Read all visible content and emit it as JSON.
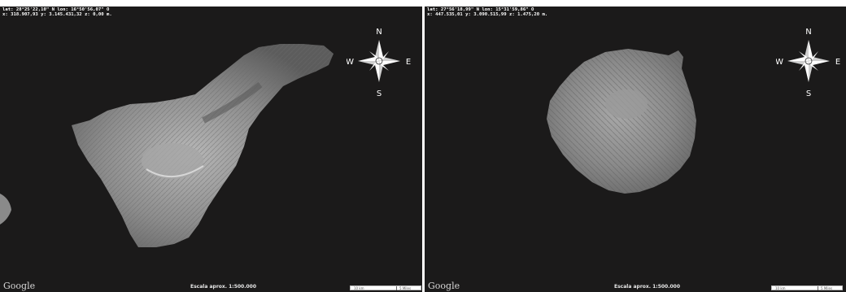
{
  "maps": [
    {
      "coord_line1": "lat: 28°25'22,10\" N  lon: 16°50'56,07\" O",
      "coord_line2": "x: 318.907,93  y: 3.145.431,32  z: 0,00 m.",
      "compass": {
        "n": "N",
        "s": "S",
        "e": "E",
        "w": "W"
      },
      "logo": "Google",
      "scale_text": "Escala aprox. 1:500.000",
      "scalebar_km": "10 km",
      "scalebar_mi": "5 Miles"
    },
    {
      "coord_line1": "lat: 27°56'18,99\" N  lon: 15°31'59,86\" O",
      "coord_line2": "x: 447.535,01  y: 3.090.515,99  z: 1.475,20 m.",
      "compass": {
        "n": "N",
        "s": "S",
        "e": "E",
        "w": "W"
      },
      "logo": "Google",
      "scale_text": "Escala aprox. 1:500.000",
      "scalebar_km": "10 km",
      "scalebar_mi": "5 Miles"
    }
  ],
  "colors": {
    "background": "#1b1a1a",
    "land": "#8a8a8a",
    "text": "#ffffff"
  }
}
